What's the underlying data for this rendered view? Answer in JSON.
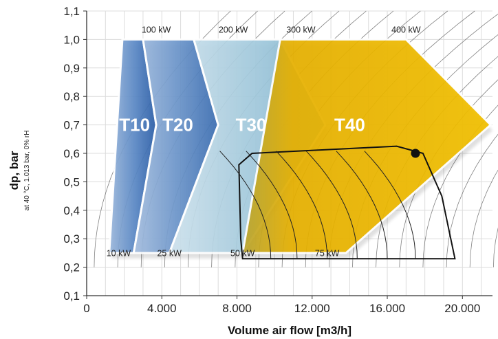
{
  "chart_data": {
    "type": "area",
    "xlabel": "Volume air flow [m3/h]",
    "ylabel": "dp, bar",
    "ylabel_note": "at 40 °C, 1.013 bar, 0% rH",
    "xlim": [
      0,
      21600
    ],
    "ylim": [
      0.1,
      1.1
    ],
    "x_ticks": [
      0,
      4000,
      8000,
      12000,
      16000,
      20000
    ],
    "x_tick_labels": [
      "0",
      "4.000",
      "8.000",
      "12.000",
      "16.000",
      "20.000"
    ],
    "y_ticks": [
      0.1,
      0.2,
      0.3,
      0.4,
      0.5,
      0.6,
      0.7,
      0.8,
      0.9,
      1.0,
      1.1
    ],
    "y_tick_labels": [
      "0,1",
      "0,2",
      "0,3",
      "0,4",
      "0,5",
      "0,6",
      "0,7",
      "0,8",
      "0,9",
      "1,0",
      "1,1"
    ],
    "grid": true,
    "series": [
      {
        "name": "T10",
        "color": "#4f7fbf",
        "polygon": [
          [
            1200,
            0.25
          ],
          [
            2500,
            0.25
          ],
          [
            3700,
            0.7
          ],
          [
            3000,
            1.0
          ],
          [
            1900,
            1.0
          ]
        ]
      },
      {
        "name": "T20",
        "color": "#3d74bd",
        "polygon": [
          [
            2500,
            0.25
          ],
          [
            4400,
            0.25
          ],
          [
            7000,
            0.7
          ],
          [
            5700,
            1.0
          ],
          [
            3000,
            1.0
          ],
          [
            3700,
            0.7
          ]
        ]
      },
      {
        "name": "T30",
        "color": "#8fc0d6",
        "polygon": [
          [
            4400,
            0.25
          ],
          [
            7600,
            0.25
          ],
          [
            8300,
            0.25
          ],
          [
            12700,
            0.7
          ],
          [
            10300,
            1.0
          ],
          [
            5700,
            1.0
          ],
          [
            7000,
            0.7
          ]
        ]
      },
      {
        "name": "T40",
        "color": "#e8b000",
        "polygon": [
          [
            8300,
            0.25
          ],
          [
            13800,
            0.25
          ],
          [
            21500,
            0.7
          ],
          [
            17000,
            1.0
          ],
          [
            10300,
            1.0
          ]
        ]
      }
    ],
    "power_labels_top": [
      {
        "text": "100 kW",
        "x": 3700
      },
      {
        "text": "200 kW",
        "x": 7800
      },
      {
        "text": "300 kW",
        "x": 11400
      },
      {
        "text": "400 kW",
        "x": 17000
      }
    ],
    "power_labels_bottom": [
      {
        "text": "10 kW",
        "x": 1700
      },
      {
        "text": "25 kW",
        "x": 4400
      },
      {
        "text": "50 kW",
        "x": 8300
      },
      {
        "text": "75 kW",
        "x": 12800
      }
    ],
    "operating_envelope": [
      [
        8800,
        0.6
      ],
      [
        16500,
        0.625
      ],
      [
        17900,
        0.6
      ],
      [
        18900,
        0.45
      ],
      [
        19600,
        0.23
      ],
      [
        8300,
        0.23
      ],
      [
        8200,
        0.3
      ],
      [
        8100,
        0.56
      ]
    ],
    "operating_point": {
      "x": 17500,
      "y": 0.6
    }
  }
}
